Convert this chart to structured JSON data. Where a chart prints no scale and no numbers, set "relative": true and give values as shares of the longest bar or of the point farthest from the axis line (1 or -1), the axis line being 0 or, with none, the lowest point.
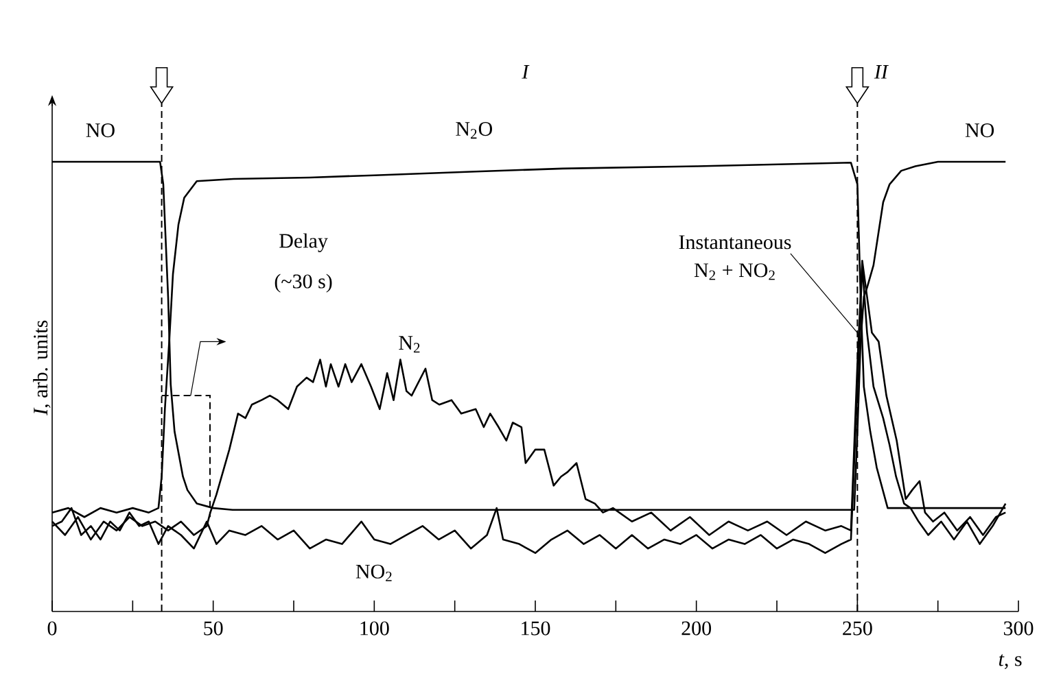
{
  "chart_data": {
    "type": "line",
    "relative": true,
    "xlabel": "*t*, s",
    "ylabel": "*I*, arb. units",
    "xlim": [
      0,
      300
    ],
    "xticks": [
      0,
      {
        "value": 25,
        "label": null
      },
      50,
      {
        "value": 75,
        "label": null
      },
      100,
      {
        "value": 125,
        "label": null
      },
      150,
      {
        "value": 175,
        "label": null
      },
      200,
      {
        "value": 225,
        "label": null
      },
      250,
      {
        "value": 275,
        "label": null
      },
      300
    ],
    "line_style": "solid",
    "series": [
      {
        "color": "#000000",
        "x": [
          0,
          10,
          20,
          30,
          33.5,
          34.5,
          36,
          36.8,
          38,
          40.6,
          42,
          44.9,
          50,
          56,
          100,
          150,
          200,
          249,
          250,
          251,
          252,
          253,
          255,
          258,
          260,
          263.6,
          268,
          275,
          285,
          296
        ],
        "values": [
          1.0,
          1.0,
          1.0,
          1.0,
          1.0,
          0.95,
          0.7,
          0.505,
          0.4,
          0.3,
          0.27,
          0.24,
          0.23,
          0.226,
          0.226,
          0.226,
          0.226,
          0.226,
          0.4,
          0.6,
          0.7,
          0.72,
          0.77,
          0.91,
          0.95,
          0.98,
          0.99,
          1.0,
          1.0,
          1.0
        ]
      },
      {
        "color": "#000000",
        "x": [
          0,
          5,
          10,
          15,
          20,
          25,
          30,
          33,
          34,
          35,
          36.4,
          37.5,
          39.2,
          41,
          44.9,
          56.3,
          80,
          100,
          130,
          158.5,
          200,
          230,
          248,
          250,
          251,
          252,
          254,
          256,
          259.4,
          265,
          280,
          296
        ],
        "values": [
          0.22,
          0.23,
          0.21,
          0.23,
          0.22,
          0.23,
          0.22,
          0.23,
          0.3,
          0.45,
          0.607,
          0.75,
          0.86,
          0.92,
          0.957,
          0.962,
          0.965,
          0.97,
          0.978,
          0.985,
          0.99,
          0.995,
          0.998,
          0.95,
          0.7,
          0.5,
          0.4,
          0.32,
          0.23,
          0.23,
          0.23,
          0.23
        ]
      },
      {
        "name": "N$_{2}$",
        "color": "#000000",
        "x": [
          0,
          4,
          8,
          12,
          16,
          20,
          24,
          28,
          32,
          36,
          40,
          44,
          48,
          49.1,
          51,
          53.4,
          55,
          57.7,
          60,
          62,
          65,
          67.6,
          70,
          73.3,
          76,
          79,
          81,
          83.2,
          85,
          86.5,
          88.9,
          91,
          93,
          96,
          99,
          101.7,
          104,
          106,
          108.1,
          110,
          111.6,
          115.9,
          118,
          120.2,
          124,
          127,
          131.5,
          134,
          136,
          138.6,
          141,
          143,
          145.7,
          147,
          150,
          152.8,
          155.7,
          158,
          160,
          162.8,
          165.6,
          168.5,
          171,
          174.1,
          180,
          186,
          192,
          198,
          204,
          210,
          216,
          222,
          228,
          234,
          240,
          245,
          248,
          250,
          251.5,
          253,
          254.5,
          256.6,
          259,
          262.2,
          265,
          267,
          269.3,
          271,
          273.5,
          277,
          281,
          285,
          289,
          293,
          296
        ],
        "values": [
          0.2,
          0.17,
          0.21,
          0.16,
          0.2,
          0.18,
          0.21,
          0.19,
          0.2,
          0.18,
          0.2,
          0.17,
          0.19,
          0.22,
          0.26,
          0.32,
          0.36,
          0.44,
          0.43,
          0.46,
          0.47,
          0.48,
          0.47,
          0.45,
          0.5,
          0.52,
          0.51,
          0.56,
          0.5,
          0.55,
          0.5,
          0.55,
          0.51,
          0.55,
          0.5,
          0.45,
          0.53,
          0.47,
          0.56,
          0.49,
          0.48,
          0.54,
          0.47,
          0.46,
          0.47,
          0.44,
          0.45,
          0.41,
          0.44,
          0.41,
          0.38,
          0.42,
          0.41,
          0.33,
          0.36,
          0.36,
          0.28,
          0.3,
          0.31,
          0.33,
          0.25,
          0.24,
          0.22,
          0.23,
          0.2,
          0.22,
          0.18,
          0.21,
          0.17,
          0.2,
          0.18,
          0.2,
          0.17,
          0.2,
          0.18,
          0.19,
          0.18,
          0.55,
          0.78,
          0.7,
          0.62,
          0.6,
          0.48,
          0.38,
          0.25,
          0.27,
          0.29,
          0.22,
          0.2,
          0.22,
          0.18,
          0.21,
          0.17,
          0.21,
          0.22
        ]
      },
      {
        "name": "NO$_{2}$",
        "color": "#000000",
        "x": [
          0,
          3,
          6,
          9,
          12,
          15,
          18,
          21,
          24,
          27,
          30,
          33,
          36,
          40,
          44,
          48,
          51,
          55,
          60,
          65,
          70,
          75,
          80,
          85,
          90,
          96,
          100,
          105,
          110,
          115,
          120,
          125,
          130,
          135,
          138,
          140,
          145,
          150,
          155,
          160,
          165,
          170,
          175,
          180,
          185,
          190,
          195,
          200,
          205,
          210,
          215,
          220,
          225,
          230,
          235,
          240,
          245,
          248,
          250,
          251.5,
          253,
          255,
          258,
          260,
          262,
          264.5,
          266.5,
          269,
          272,
          276,
          280,
          284,
          288,
          292,
          296
        ],
        "values": [
          0.19,
          0.2,
          0.23,
          0.17,
          0.19,
          0.16,
          0.2,
          0.18,
          0.22,
          0.19,
          0.2,
          0.15,
          0.19,
          0.17,
          0.14,
          0.2,
          0.15,
          0.18,
          0.17,
          0.19,
          0.16,
          0.18,
          0.14,
          0.16,
          0.15,
          0.2,
          0.16,
          0.15,
          0.17,
          0.19,
          0.16,
          0.18,
          0.14,
          0.17,
          0.23,
          0.16,
          0.15,
          0.13,
          0.16,
          0.18,
          0.15,
          0.17,
          0.14,
          0.17,
          0.14,
          0.16,
          0.15,
          0.17,
          0.14,
          0.16,
          0.15,
          0.17,
          0.14,
          0.16,
          0.15,
          0.13,
          0.15,
          0.16,
          0.5,
          0.77,
          0.62,
          0.5,
          0.43,
          0.37,
          0.3,
          0.24,
          0.23,
          0.2,
          0.17,
          0.2,
          0.16,
          0.2,
          0.15,
          0.19,
          0.24
        ]
      }
    ],
    "ref_lines": [
      {
        "axis": "x",
        "value": 34,
        "line_style": "dashed"
      },
      {
        "axis": "x",
        "value": 250,
        "line_style": "dashed"
      }
    ],
    "annotations": [
      "NO",
      "N$_{2}$O",
      "NO",
      "*I*",
      "*II*",
      "Delay",
      "(~30 s)",
      {
        "text": "Instantaneous",
        "x": 250,
        "y": 0.62
      },
      "N$_{2}$ + NO$_{2}$"
    ]
  }
}
